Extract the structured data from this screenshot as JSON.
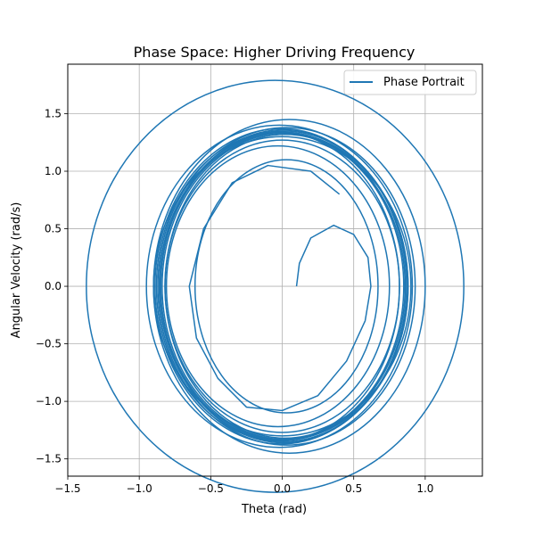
{
  "chart_data": {
    "type": "line",
    "title": "Phase Space: Higher Driving Frequency",
    "xlabel": "Theta (rad)",
    "ylabel": "Angular Velocity (rad/s)",
    "xlim": [
      -1.5,
      1.4
    ],
    "ylim": [
      -1.65,
      1.93
    ],
    "x_ticks": [
      -1.5,
      -1.0,
      -0.5,
      0.0,
      0.5,
      1.0
    ],
    "x_tick_labels": [
      "−1.5",
      "−1.0",
      "−0.5",
      "0.0",
      "0.5",
      "1.0"
    ],
    "y_ticks": [
      -1.5,
      -1.0,
      -0.5,
      0.0,
      0.5,
      1.0,
      1.5
    ],
    "y_tick_labels": [
      "−1.5",
      "−1.0",
      "−0.5",
      "0.0",
      "0.5",
      "1.0",
      "1.5"
    ],
    "grid": true,
    "legend_position": "top-right",
    "series": [
      {
        "name": "Phase Portrait",
        "color": "#1f77b4",
        "start": [
          0.1,
          0.0
        ],
        "start_path_points": [
          [
            0.1,
            0.0
          ],
          [
            0.12,
            0.2
          ],
          [
            0.2,
            0.42
          ],
          [
            0.36,
            0.53
          ],
          [
            0.5,
            0.45
          ],
          [
            0.6,
            0.25
          ],
          [
            0.62,
            0.0
          ],
          [
            0.58,
            -0.3
          ],
          [
            0.45,
            -0.65
          ],
          [
            0.25,
            -0.95
          ],
          [
            0.0,
            -1.08
          ],
          [
            -0.25,
            -1.05
          ],
          [
            -0.45,
            -0.8
          ],
          [
            -0.6,
            -0.45
          ],
          [
            -0.65,
            0.0
          ],
          [
            -0.55,
            0.5
          ],
          [
            -0.35,
            0.9
          ],
          [
            -0.1,
            1.05
          ],
          [
            0.2,
            1.0
          ],
          [
            0.4,
            0.8
          ]
        ],
        "loops": [
          {
            "center_x": 0.03,
            "radius_theta": 0.64,
            "radius_omega": 1.1
          },
          {
            "center_x": -0.03,
            "radius_theta": 0.78,
            "radius_omega": 1.22
          },
          {
            "center_x": -0.0,
            "radius_theta": 0.82,
            "radius_omega": 1.27
          },
          {
            "center_x": 0.02,
            "radius_theta": 0.84,
            "radius_omega": 1.32
          },
          {
            "center_x": 0.0,
            "radius_theta": 0.86,
            "radius_omega": 1.34
          },
          {
            "center_x": 0.01,
            "radius_theta": 0.87,
            "radius_omega": 1.35
          },
          {
            "center_x": 0.0,
            "radius_theta": 0.85,
            "radius_omega": 1.33
          },
          {
            "center_x": 0.01,
            "radius_theta": 0.86,
            "radius_omega": 1.36
          },
          {
            "center_x": -0.01,
            "radius_theta": 0.88,
            "radius_omega": 1.37
          },
          {
            "center_x": 0.03,
            "radius_theta": 0.9,
            "radius_omega": 1.38
          },
          {
            "center_x": -0.02,
            "radius_theta": 0.93,
            "radius_omega": 1.4
          },
          {
            "center_x": 0.05,
            "radius_theta": 0.95,
            "radius_omega": 1.45
          },
          {
            "center_x": 0.0,
            "radius_theta": 0.9,
            "radius_omega": 1.3
          },
          {
            "center_x": 0.02,
            "radius_theta": 0.86,
            "radius_omega": 1.33
          },
          {
            "center_x": -0.05,
            "radius_theta": 1.32,
            "radius_omega": 1.79
          },
          {
            "center_x": -0.03,
            "radius_theta": 0.85,
            "radius_omega": 1.34
          }
        ]
      }
    ]
  }
}
